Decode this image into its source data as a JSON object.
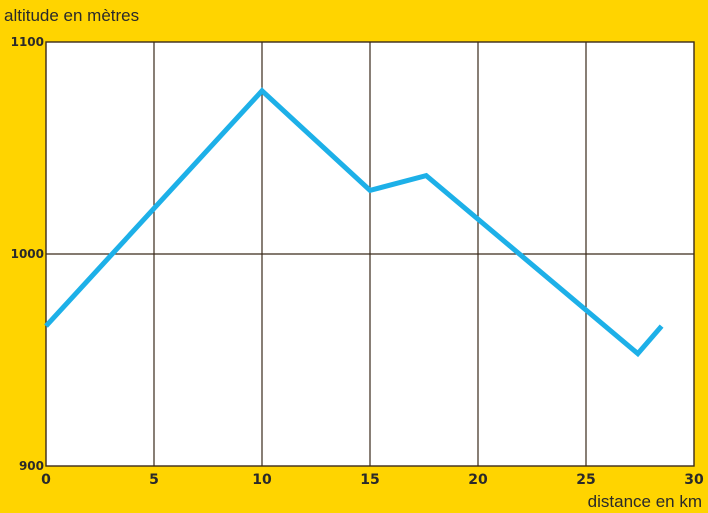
{
  "chart_data": {
    "type": "line",
    "title": "",
    "xlabel": "distance en km",
    "ylabel": "altitude en mètres",
    "xlim": [
      0,
      30
    ],
    "ylim": [
      900,
      1100
    ],
    "x_ticks": [
      0,
      5,
      10,
      15,
      20,
      25,
      30
    ],
    "y_ticks": [
      900,
      1000,
      1100
    ],
    "grid": true,
    "series": [
      {
        "color": "#1DB0E8",
        "x": [
          0,
          10,
          15,
          17.6,
          27.4,
          28.5
        ],
        "y": [
          966,
          1077,
          1030,
          1037,
          953,
          966
        ]
      }
    ]
  },
  "colors": {
    "background": "#FFD400",
    "plot_background": "#FFFFFF",
    "grid": "#3A2A1A",
    "line": "#1DB0E8"
  }
}
